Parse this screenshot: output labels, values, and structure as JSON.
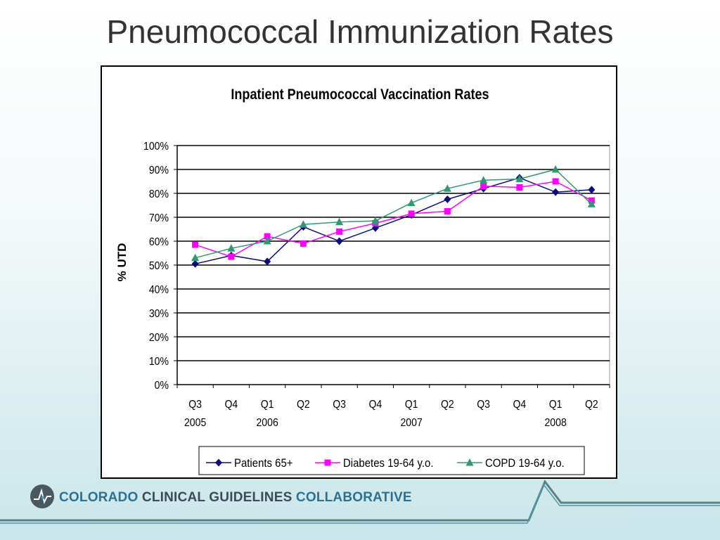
{
  "slide": {
    "title": "Pneumococcal Immunization Rates"
  },
  "footer": {
    "org_part1": "COLORADO",
    "org_part2": "CLINICAL GUIDELINES",
    "org_part3": "COLLABORATIVE",
    "colors": {
      "part1": "#2f6f8f",
      "part2": "#3b4b57",
      "part3": "#2f6f8f"
    }
  },
  "chart_data": {
    "type": "line",
    "title": "Inpatient Pneumococcal Vaccination Rates",
    "ylabel": "% UTD",
    "xlabel": "",
    "ylim": [
      0,
      100
    ],
    "y_ticks": [
      "0%",
      "10%",
      "20%",
      "30%",
      "40%",
      "50%",
      "60%",
      "70%",
      "80%",
      "90%",
      "100%"
    ],
    "categories": [
      "Q3",
      "Q4",
      "Q1",
      "Q2",
      "Q3",
      "Q4",
      "Q1",
      "Q2",
      "Q3",
      "Q4",
      "Q1",
      "Q2"
    ],
    "year_labels": [
      {
        "index": 0,
        "text": "2005"
      },
      {
        "index": 2,
        "text": "2006"
      },
      {
        "index": 6,
        "text": "2007"
      },
      {
        "index": 10,
        "text": "2008"
      }
    ],
    "grid": true,
    "legend_position": "bottom",
    "series": [
      {
        "name": "Patients 65+",
        "color": "#0a0a7a",
        "marker": "diamond",
        "values": [
          50.5,
          54,
          51.5,
          66,
          60,
          65.5,
          71,
          77.5,
          82,
          86.5,
          80.5,
          81.5
        ]
      },
      {
        "name": "Diabetes 19-64 y.o.",
        "color": "#ff00ff",
        "marker": "square",
        "values": [
          58.5,
          53.5,
          62,
          59,
          64,
          67.5,
          71.5,
          72.5,
          83,
          82.5,
          85,
          77
        ]
      },
      {
        "name": "COPD 19-64 y.o.",
        "color": "#2e9a6e",
        "marker": "triangle",
        "values": [
          53,
          57,
          60,
          67,
          68,
          68.5,
          76,
          82,
          85.5,
          86,
          90,
          75.5
        ]
      }
    ]
  }
}
